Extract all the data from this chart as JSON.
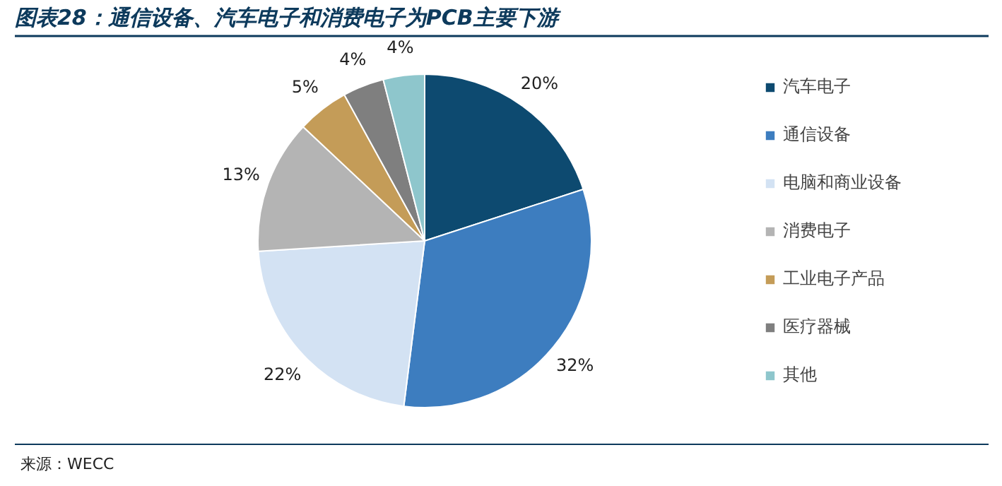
{
  "chart_data": {
    "type": "pie",
    "title": "图表28：通信设备、汽车电子和消费电子为PCB主要下游",
    "categories": [
      "汽车电子",
      "通信设备",
      "电脑和商业设备",
      "消费电子",
      "工业电子产品",
      "医疗器械",
      "其他"
    ],
    "values": [
      20,
      32,
      22,
      13,
      5,
      4,
      4
    ],
    "colors": [
      "#0d4a70",
      "#3d7dbf",
      "#d3e2f3",
      "#b4b4b4",
      "#c49c58",
      "#7f7f7f",
      "#8ec6cc"
    ],
    "value_labels": [
      "20%",
      "32%",
      "22%",
      "13%",
      "5%",
      "4%",
      "4%"
    ],
    "legend": "right",
    "annotations": [
      "来源：WECC"
    ]
  }
}
